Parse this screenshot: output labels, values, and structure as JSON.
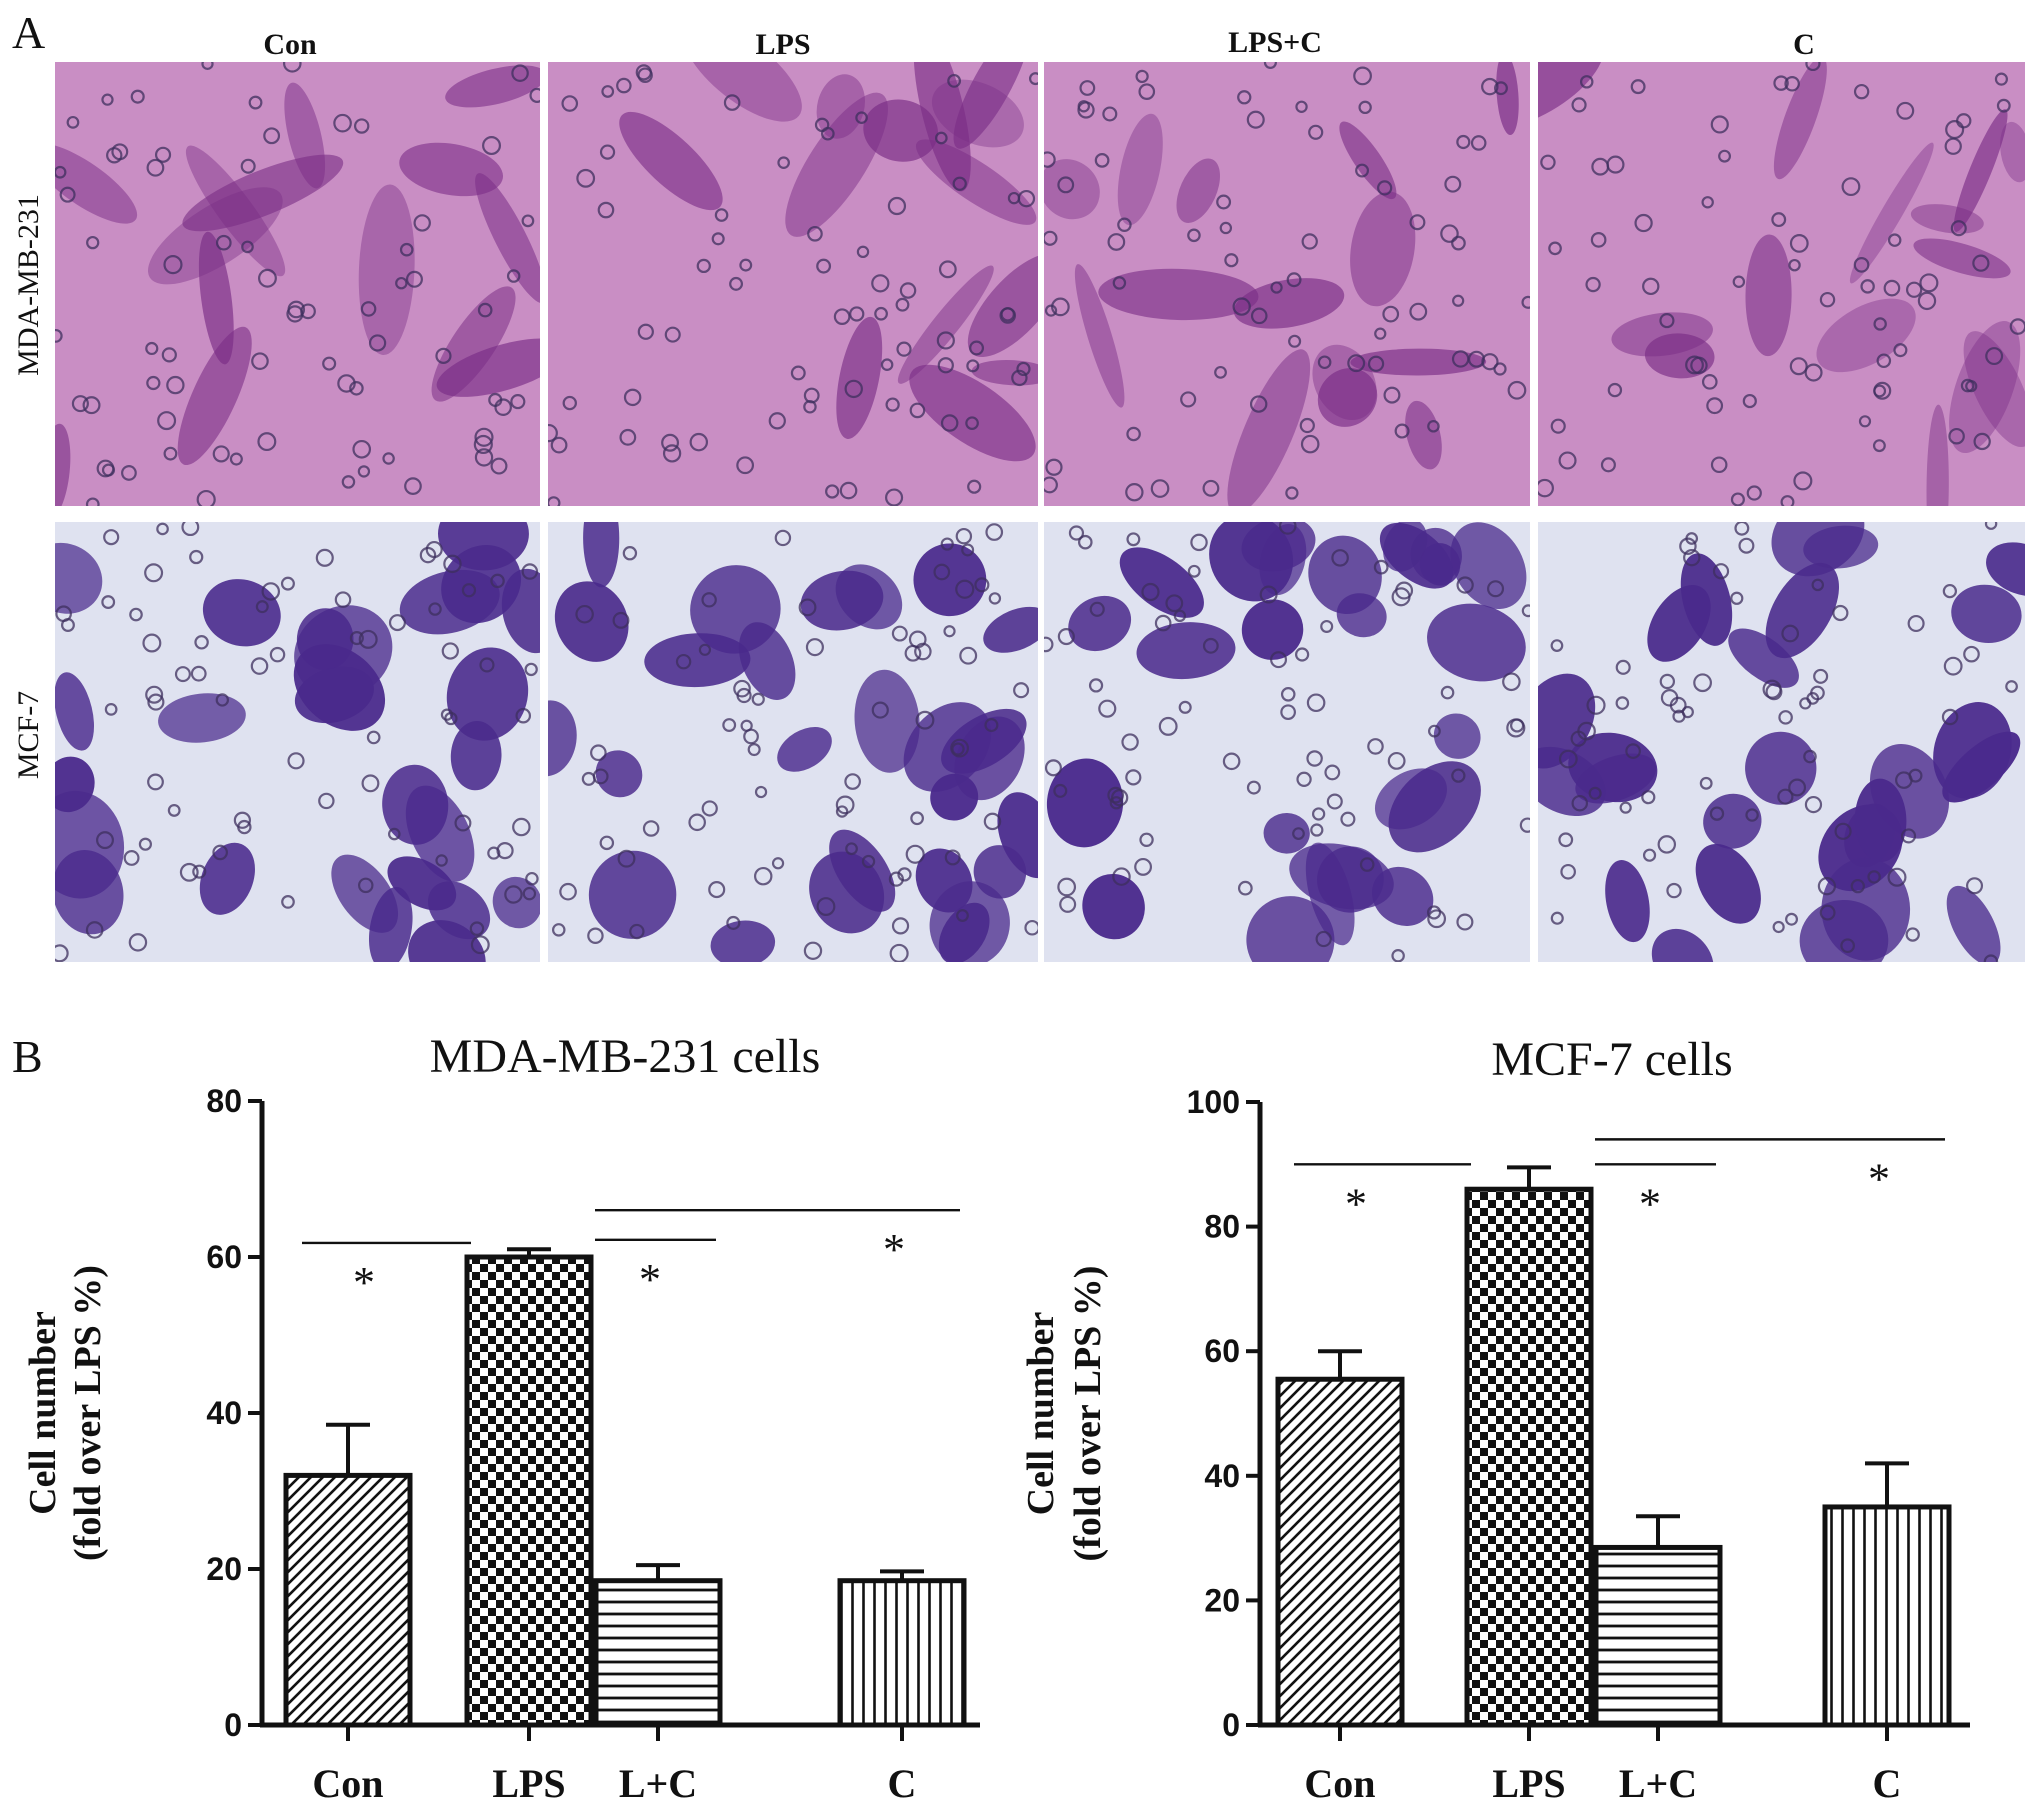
{
  "panel_a": {
    "letter": "A",
    "columns": [
      "Con",
      "LPS",
      "LPS+C",
      "C"
    ],
    "rows": [
      "MDA-MB-231",
      "MCF-7"
    ],
    "colors": {
      "mda_bg": "#c98ec4",
      "mda_cell": "#7a2d86",
      "mcf_bg": "#dfe2f0",
      "mcf_cell": "#4a2a8c",
      "bubble": "#3d2f5e"
    }
  },
  "panel_b": {
    "letter": "B"
  },
  "chart_data": [
    {
      "type": "bar",
      "title": "MDA-MB-231 cells",
      "ylabel_line1": "Cell  number",
      "ylabel_line2": "(fold over LPS %)",
      "categories": [
        "Con",
        "LPS",
        "L+C",
        "C"
      ],
      "values": [
        32,
        60,
        18.5,
        18.5
      ],
      "errors": [
        6.5,
        1,
        2,
        1.2
      ],
      "patterns": [
        "diagonal",
        "checker",
        "horizontal",
        "vertical"
      ],
      "ylim": [
        0,
        80
      ],
      "yticks": [
        0,
        20,
        40,
        60,
        80
      ],
      "significance": [
        {
          "from": 0,
          "to": 1,
          "y": 61.8,
          "label": "*"
        },
        {
          "from": 1,
          "to": 2,
          "y": 62.2,
          "label": "*"
        },
        {
          "from": 1,
          "to": 3,
          "y": 66,
          "label": "*"
        }
      ]
    },
    {
      "type": "bar",
      "title": "MCF-7 cells",
      "ylabel_line1": "Cell  number",
      "ylabel_line2": "(fold over LPS %)",
      "categories": [
        "Con",
        "LPS",
        "L+C",
        "C"
      ],
      "values": [
        55.5,
        86,
        28.5,
        35
      ],
      "errors": [
        4.5,
        3.5,
        5,
        7
      ],
      "patterns": [
        "diagonal",
        "checker",
        "horizontal",
        "vertical"
      ],
      "ylim": [
        0,
        100
      ],
      "yticks": [
        0,
        20,
        40,
        60,
        80,
        100
      ],
      "significance": [
        {
          "from": 0,
          "to": 1,
          "y": 90,
          "label": "*"
        },
        {
          "from": 1,
          "to": 2,
          "y": 90,
          "label": "*"
        },
        {
          "from": 1,
          "to": 3,
          "y": 94,
          "label": "*"
        }
      ]
    }
  ]
}
